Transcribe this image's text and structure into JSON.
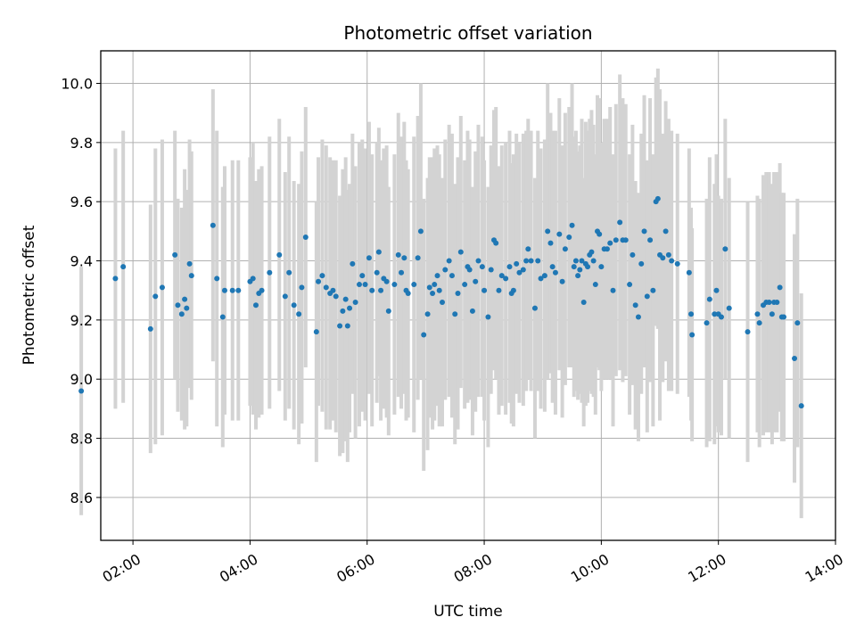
{
  "chart_data": {
    "type": "scatter",
    "title": "Photometric offset variation",
    "xlabel": "UTC time",
    "ylabel": "Photometric offset",
    "xlim": [
      "01:27",
      "14:00"
    ],
    "ylim": [
      8.455,
      10.11
    ],
    "xticks": [
      "02:00",
      "04:00",
      "06:00",
      "08:00",
      "10:00",
      "12:00",
      "14:00"
    ],
    "yticks": [
      "8.6",
      "8.8",
      "9.0",
      "9.2",
      "9.4",
      "9.6",
      "9.8",
      "10.0"
    ],
    "grid": true,
    "colors": {
      "points": "#1f77b4",
      "errorbars": "#d3d3d3",
      "grid": "#b0b0b0"
    },
    "x_format": "HH:MM",
    "y_format": "offset ± error",
    "points": [
      [
        "01:07",
        8.96,
        0.42
      ],
      [
        "01:42",
        9.34,
        0.44
      ],
      [
        "01:50",
        9.38,
        0.46
      ],
      [
        "02:18",
        9.17,
        0.42
      ],
      [
        "02:23",
        9.28,
        0.5
      ],
      [
        "02:30",
        9.31,
        0.5
      ],
      [
        "02:43",
        9.42,
        0.42
      ],
      [
        "02:46",
        9.25,
        0.36
      ],
      [
        "02:50",
        9.22,
        0.36
      ],
      [
        "02:53",
        9.27,
        0.44
      ],
      [
        "02:55",
        9.24,
        0.4
      ],
      [
        "02:58",
        9.39,
        0.42
      ],
      [
        "03:00",
        9.35,
        0.42
      ],
      [
        "03:22",
        9.52,
        0.46
      ],
      [
        "03:26",
        9.34,
        0.5
      ],
      [
        "03:32",
        9.21,
        0.44
      ],
      [
        "03:34",
        9.3,
        0.42
      ],
      [
        "03:42",
        9.3,
        0.44
      ],
      [
        "03:48",
        9.3,
        0.44
      ],
      [
        "04:00",
        9.33,
        0.42
      ],
      [
        "04:03",
        9.34,
        0.46
      ],
      [
        "04:06",
        9.25,
        0.42
      ],
      [
        "04:09",
        9.29,
        0.42
      ],
      [
        "04:12",
        9.3,
        0.42
      ],
      [
        "04:20",
        9.36,
        0.46
      ],
      [
        "04:30",
        9.42,
        0.46
      ],
      [
        "04:36",
        9.28,
        0.42
      ],
      [
        "04:40",
        9.36,
        0.46
      ],
      [
        "04:45",
        9.25,
        0.42
      ],
      [
        "04:50",
        9.22,
        0.44
      ],
      [
        "04:53",
        9.31,
        0.46
      ],
      [
        "04:57",
        9.48,
        0.44
      ],
      [
        "05:08",
        9.16,
        0.44
      ],
      [
        "05:10",
        9.33,
        0.42
      ],
      [
        "05:14",
        9.35,
        0.46
      ],
      [
        "05:18",
        9.31,
        0.48
      ],
      [
        "05:22",
        9.29,
        0.46
      ],
      [
        "05:25",
        9.3,
        0.44
      ],
      [
        "05:28",
        9.28,
        0.46
      ],
      [
        "05:32",
        9.18,
        0.44
      ],
      [
        "05:35",
        9.23,
        0.48
      ],
      [
        "05:38",
        9.27,
        0.48
      ],
      [
        "05:40",
        9.18,
        0.46
      ],
      [
        "05:42",
        9.24,
        0.42
      ],
      [
        "05:45",
        9.39,
        0.44
      ],
      [
        "05:48",
        9.26,
        0.46
      ],
      [
        "05:52",
        9.32,
        0.48
      ],
      [
        "05:55",
        9.35,
        0.46
      ],
      [
        "05:58",
        9.32,
        0.46
      ],
      [
        "06:02",
        9.41,
        0.46
      ],
      [
        "06:05",
        9.3,
        0.46
      ],
      [
        "06:10",
        9.36,
        0.44
      ],
      [
        "06:12",
        9.43,
        0.42
      ],
      [
        "06:14",
        9.3,
        0.44
      ],
      [
        "06:17",
        9.34,
        0.44
      ],
      [
        "06:20",
        9.33,
        0.46
      ],
      [
        "06:22",
        9.23,
        0.42
      ],
      [
        "06:28",
        9.32,
        0.44
      ],
      [
        "06:32",
        9.42,
        0.48
      ],
      [
        "06:35",
        9.36,
        0.46
      ],
      [
        "06:38",
        9.41,
        0.46
      ],
      [
        "06:40",
        9.3,
        0.44
      ],
      [
        "06:42",
        9.29,
        0.42
      ],
      [
        "06:48",
        9.32,
        0.5
      ],
      [
        "06:52",
        9.41,
        0.48
      ],
      [
        "06:55",
        9.5,
        0.5
      ],
      [
        "06:58",
        9.15,
        0.46
      ],
      [
        "07:02",
        9.22,
        0.46
      ],
      [
        "07:04",
        9.31,
        0.44
      ],
      [
        "07:07",
        9.29,
        0.46
      ],
      [
        "07:09",
        9.32,
        0.46
      ],
      [
        "07:12",
        9.35,
        0.44
      ],
      [
        "07:14",
        9.3,
        0.46
      ],
      [
        "07:17",
        9.26,
        0.42
      ],
      [
        "07:20",
        9.37,
        0.44
      ],
      [
        "07:24",
        9.4,
        0.46
      ],
      [
        "07:27",
        9.35,
        0.48
      ],
      [
        "07:30",
        9.22,
        0.44
      ],
      [
        "07:33",
        9.29,
        0.46
      ],
      [
        "07:36",
        9.43,
        0.46
      ],
      [
        "07:40",
        9.32,
        0.42
      ],
      [
        "07:43",
        9.38,
        0.46
      ],
      [
        "07:45",
        9.37,
        0.44
      ],
      [
        "07:48",
        9.23,
        0.42
      ],
      [
        "07:51",
        9.33,
        0.44
      ],
      [
        "07:54",
        9.4,
        0.46
      ],
      [
        "07:58",
        9.38,
        0.44
      ],
      [
        "08:00",
        9.3,
        0.44
      ],
      [
        "08:04",
        9.21,
        0.44
      ],
      [
        "08:07",
        9.37,
        0.42
      ],
      [
        "08:10",
        9.47,
        0.44
      ],
      [
        "08:12",
        9.46,
        0.46
      ],
      [
        "08:15",
        9.3,
        0.42
      ],
      [
        "08:18",
        9.35,
        0.44
      ],
      [
        "08:22",
        9.34,
        0.46
      ],
      [
        "08:26",
        9.38,
        0.46
      ],
      [
        "08:28",
        9.29,
        0.44
      ],
      [
        "08:30",
        9.3,
        0.46
      ],
      [
        "08:33",
        9.39,
        0.44
      ],
      [
        "08:36",
        9.36,
        0.44
      ],
      [
        "08:40",
        9.37,
        0.46
      ],
      [
        "08:43",
        9.4,
        0.44
      ],
      [
        "08:45",
        9.44,
        0.44
      ],
      [
        "08:48",
        9.4,
        0.44
      ],
      [
        "08:52",
        9.24,
        0.44
      ],
      [
        "08:55",
        9.4,
        0.44
      ],
      [
        "08:58",
        9.34,
        0.44
      ],
      [
        "09:02",
        9.35,
        0.46
      ],
      [
        "09:05",
        9.5,
        0.5
      ],
      [
        "09:08",
        9.46,
        0.44
      ],
      [
        "09:10",
        9.38,
        0.46
      ],
      [
        "09:13",
        9.36,
        0.48
      ],
      [
        "09:17",
        9.49,
        0.46
      ],
      [
        "09:20",
        9.33,
        0.46
      ],
      [
        "09:23",
        9.44,
        0.46
      ],
      [
        "09:27",
        9.48,
        0.44
      ],
      [
        "09:30",
        9.52,
        0.48
      ],
      [
        "09:32",
        9.38,
        0.44
      ],
      [
        "09:34",
        9.4,
        0.44
      ],
      [
        "09:36",
        9.35,
        0.42
      ],
      [
        "09:38",
        9.37,
        0.42
      ],
      [
        "09:40",
        9.4,
        0.48
      ],
      [
        "09:42",
        9.26,
        0.42
      ],
      [
        "09:44",
        9.39,
        0.48
      ],
      [
        "09:46",
        9.38,
        0.46
      ],
      [
        "09:48",
        9.42,
        0.46
      ],
      [
        "09:50",
        9.43,
        0.48
      ],
      [
        "09:52",
        9.4,
        0.46
      ],
      [
        "09:54",
        9.32,
        0.44
      ],
      [
        "09:56",
        9.5,
        0.46
      ],
      [
        "09:58",
        9.49,
        0.46
      ],
      [
        "10:00",
        9.38,
        0.42
      ],
      [
        "10:03",
        9.44,
        0.44
      ],
      [
        "10:06",
        9.44,
        0.44
      ],
      [
        "10:09",
        9.46,
        0.46
      ],
      [
        "10:12",
        9.3,
        0.46
      ],
      [
        "10:15",
        9.47,
        0.46
      ],
      [
        "10:19",
        9.53,
        0.5
      ],
      [
        "10:22",
        9.47,
        0.48
      ],
      [
        "10:25",
        9.47,
        0.46
      ],
      [
        "10:29",
        9.32,
        0.44
      ],
      [
        "10:32",
        9.42,
        0.44
      ],
      [
        "10:35",
        9.25,
        0.42
      ],
      [
        "10:38",
        9.21,
        0.42
      ],
      [
        "10:41",
        9.39,
        0.44
      ],
      [
        "10:44",
        9.5,
        0.46
      ],
      [
        "10:47",
        9.28,
        0.46
      ],
      [
        "10:50",
        9.47,
        0.48
      ],
      [
        "10:53",
        9.3,
        0.46
      ],
      [
        "10:56",
        9.6,
        0.42
      ],
      [
        "10:58",
        9.61,
        0.44
      ],
      [
        "11:00",
        9.42,
        0.56
      ],
      [
        "11:03",
        9.41,
        0.42
      ],
      [
        "11:06",
        9.5,
        0.44
      ],
      [
        "11:09",
        9.42,
        0.46
      ],
      [
        "11:12",
        9.4,
        0.44
      ],
      [
        "11:18",
        9.39,
        0.44
      ],
      [
        "11:30",
        9.36,
        0.42
      ],
      [
        "11:32",
        9.22,
        0.36
      ],
      [
        "11:33",
        9.15,
        0.36
      ],
      [
        "11:48",
        9.19,
        0.42
      ],
      [
        "11:51",
        9.27,
        0.48
      ],
      [
        "11:56",
        9.22,
        0.44
      ],
      [
        "11:58",
        9.3,
        0.46
      ],
      [
        "12:00",
        9.22,
        0.4
      ],
      [
        "12:03",
        9.21,
        0.4
      ],
      [
        "12:07",
        9.44,
        0.44
      ],
      [
        "12:11",
        9.24,
        0.44
      ],
      [
        "12:30",
        9.16,
        0.44
      ],
      [
        "12:40",
        9.22,
        0.4
      ],
      [
        "12:42",
        9.19,
        0.42
      ],
      [
        "12:46",
        9.25,
        0.44
      ],
      [
        "12:49",
        9.26,
        0.44
      ],
      [
        "12:52",
        9.26,
        0.44
      ],
      [
        "12:55",
        9.22,
        0.44
      ],
      [
        "12:57",
        9.26,
        0.44
      ],
      [
        "13:00",
        9.26,
        0.44
      ],
      [
        "13:03",
        9.31,
        0.42
      ],
      [
        "13:05",
        9.21,
        0.42
      ],
      [
        "13:07",
        9.21,
        0.42
      ],
      [
        "13:18",
        9.07,
        0.42
      ],
      [
        "13:21",
        9.19,
        0.42
      ],
      [
        "13:25",
        8.91,
        0.38
      ]
    ]
  }
}
